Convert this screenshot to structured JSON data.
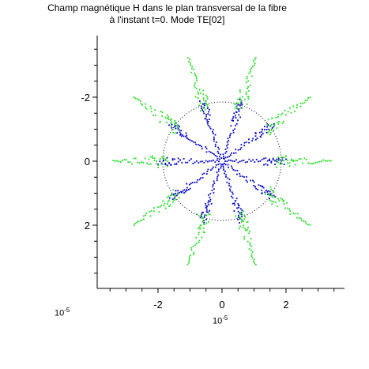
{
  "chart_data": {
    "type": "scatter",
    "title_line1": "Champ magnétique H dans le plan transversal de la fibre",
    "title_line2": "à l'instant t=0. Mode TE[02]",
    "x_ticks": [
      "-2",
      "0",
      "2"
    ],
    "y_ticks": [
      "-2",
      "0",
      "2"
    ],
    "x_multiplier": "10-5",
    "y_multiplier": "10-5",
    "xlim": [
      -3.8,
      3.8
    ],
    "ylim": [
      -3.8,
      3.8
    ],
    "y_axis_inverted": true,
    "circle_radius": 1.85,
    "spoke_angles_deg": [
      0,
      36,
      72,
      108,
      144,
      180,
      216,
      252,
      288,
      324
    ],
    "series": [
      {
        "color": "#0000cc",
        "r_range": [
          0.1,
          2.0
        ],
        "note": "inside circle"
      },
      {
        "color": "#22dd22",
        "r_range": [
          1.7,
          3.4
        ],
        "note": "outside circle"
      }
    ],
    "circle_color": "#000000"
  }
}
